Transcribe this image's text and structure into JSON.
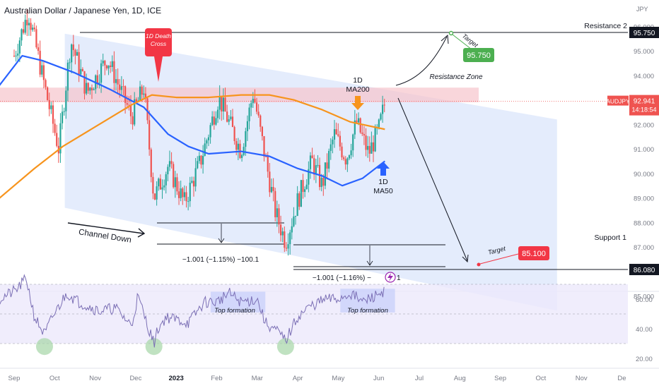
{
  "header": {
    "title": "Australian Dollar / Japanese Yen, 1D, ICE"
  },
  "colors": {
    "bull": "#26a69a",
    "bear": "#ef5350",
    "ma50": "#2962ff",
    "ma200": "#f7941d",
    "channel": "#dbe5fb",
    "zone": "#f6c5cc",
    "rsi": "#7b6fb5",
    "rsi_band": "#ece8fb",
    "green_label": "#4caf50",
    "red_label": "#f23645"
  },
  "chart_data": {
    "type": "candlestick",
    "title": "Australian Dollar / Japanese Yen, 1D, ICE",
    "y_unit": "JPY",
    "ylim": [
      84.3,
      96.5
    ],
    "yticks": [
      85.0,
      86.0,
      87.0,
      88.0,
      89.0,
      90.0,
      91.0,
      92.0,
      93.0,
      94.0,
      95.0,
      96.0
    ],
    "x_labels": [
      "Sep",
      "Oct",
      "Nov",
      "Dec",
      "2023",
      "Feb",
      "Mar",
      "Apr",
      "May",
      "Jun",
      "Jul",
      "Aug",
      "Sep",
      "Oct",
      "Nov",
      "De"
    ],
    "candle_anchors": [
      {
        "m": 0.0,
        "p": 94.8
      },
      {
        "m": 0.35,
        "p": 96.6
      },
      {
        "m": 0.8,
        "p": 93.2
      },
      {
        "m": 1.1,
        "p": 91.0
      },
      {
        "m": 1.4,
        "p": 95.4
      },
      {
        "m": 1.8,
        "p": 93.3
      },
      {
        "m": 2.3,
        "p": 94.7
      },
      {
        "m": 2.9,
        "p": 92.3
      },
      {
        "m": 3.2,
        "p": 93.5
      },
      {
        "m": 3.45,
        "p": 89.0
      },
      {
        "m": 3.8,
        "p": 90.3
      },
      {
        "m": 4.2,
        "p": 88.8
      },
      {
        "m": 4.6,
        "p": 90.5
      },
      {
        "m": 5.05,
        "p": 93.1
      },
      {
        "m": 5.6,
        "p": 90.9
      },
      {
        "m": 5.9,
        "p": 93.3
      },
      {
        "m": 6.1,
        "p": 91.5
      },
      {
        "m": 6.45,
        "p": 88.4
      },
      {
        "m": 6.7,
        "p": 87.2
      },
      {
        "m": 7.0,
        "p": 88.9
      },
      {
        "m": 7.35,
        "p": 90.5
      },
      {
        "m": 7.6,
        "p": 89.5
      },
      {
        "m": 7.9,
        "p": 91.6
      },
      {
        "m": 8.2,
        "p": 90.6
      },
      {
        "m": 8.45,
        "p": 92.1
      },
      {
        "m": 8.75,
        "p": 90.8
      },
      {
        "m": 9.0,
        "p": 91.8
      },
      {
        "m": 9.15,
        "p": 92.9
      }
    ],
    "series": [
      {
        "name": "1D MA50",
        "points": [
          [
            -0.5,
            93.3
          ],
          [
            0.2,
            94.8
          ],
          [
            0.7,
            94.6
          ],
          [
            1.5,
            94.1
          ],
          [
            2.4,
            93.4
          ],
          [
            3.2,
            92.7
          ],
          [
            3.8,
            91.6
          ],
          [
            4.3,
            91.1
          ],
          [
            4.8,
            90.8
          ],
          [
            5.6,
            90.9
          ],
          [
            6.3,
            90.7
          ],
          [
            7.0,
            90.2
          ],
          [
            7.6,
            89.9
          ],
          [
            8.1,
            89.5
          ],
          [
            8.6,
            89.8
          ],
          [
            9.15,
            90.5
          ]
        ]
      },
      {
        "name": "1D MA200",
        "points": [
          [
            -0.5,
            88.8
          ],
          [
            0.5,
            90.2
          ],
          [
            1.2,
            91.1
          ],
          [
            2.1,
            92.0
          ],
          [
            2.9,
            92.8
          ],
          [
            3.4,
            93.2
          ],
          [
            4.0,
            93.1
          ],
          [
            4.8,
            93.1
          ],
          [
            5.6,
            93.2
          ],
          [
            6.3,
            93.2
          ],
          [
            6.9,
            93.0
          ],
          [
            7.6,
            92.6
          ],
          [
            8.3,
            92.1
          ],
          [
            9.15,
            91.8
          ]
        ]
      }
    ],
    "rsi": {
      "ylim": [
        15,
        87
      ],
      "yticks": [
        20.0,
        40.0,
        60.0,
        80.0
      ],
      "band": [
        30,
        70
      ],
      "midline": 50,
      "anchors": [
        [
          -0.5,
          58
        ],
        [
          0.05,
          66
        ],
        [
          0.3,
          74
        ],
        [
          0.5,
          48
        ],
        [
          0.75,
          36
        ],
        [
          0.95,
          48
        ],
        [
          1.3,
          64
        ],
        [
          1.6,
          58
        ],
        [
          2.1,
          52
        ],
        [
          2.5,
          54
        ],
        [
          2.9,
          42
        ],
        [
          3.05,
          62
        ],
        [
          3.25,
          46
        ],
        [
          3.45,
          30
        ],
        [
          3.55,
          40
        ],
        [
          3.75,
          48
        ],
        [
          4.3,
          44
        ],
        [
          4.7,
          58
        ],
        [
          5.0,
          58
        ],
        [
          5.3,
          64
        ],
        [
          5.6,
          58
        ],
        [
          6.0,
          60
        ],
        [
          6.2,
          44
        ],
        [
          6.5,
          38
        ],
        [
          6.7,
          32
        ],
        [
          7.0,
          48
        ],
        [
          7.3,
          55
        ],
        [
          7.7,
          60
        ],
        [
          8.0,
          60
        ],
        [
          8.3,
          64
        ],
        [
          8.6,
          58
        ],
        [
          8.9,
          62
        ],
        [
          9.15,
          66
        ]
      ]
    },
    "annotations": {
      "resistance_2": {
        "label": "Resistance 2",
        "value": 95.75,
        "value_label": "95.750"
      },
      "support_1": {
        "label": "Support 1",
        "value": 86.08,
        "value_label": "86.080"
      },
      "current": {
        "label": "AUDJPY",
        "value": 92.941,
        "value_label": "92.941",
        "countdown": "14:18:54"
      },
      "target_up": {
        "label": "Target",
        "value_label": "95.750"
      },
      "target_down": {
        "label": "Target",
        "value_label": "85.100"
      },
      "death_cross": {
        "line1": "1D Death",
        "line2": "Cross"
      },
      "ma200_label": {
        "line1": "1D",
        "line2": "MA200"
      },
      "ma50_label": {
        "line1": "1D",
        "line2": "MA50"
      },
      "resistance_zone": "Resistance Zone",
      "channel_down": "Channel Down",
      "measure_1": "−1.001 (−1.15%) −100.1",
      "measure_2": "−1.001 (−1.16%) −",
      "measure_2_suffix": "1",
      "top_formation_1": "Top formation",
      "top_formation_2": "Top formation"
    }
  }
}
